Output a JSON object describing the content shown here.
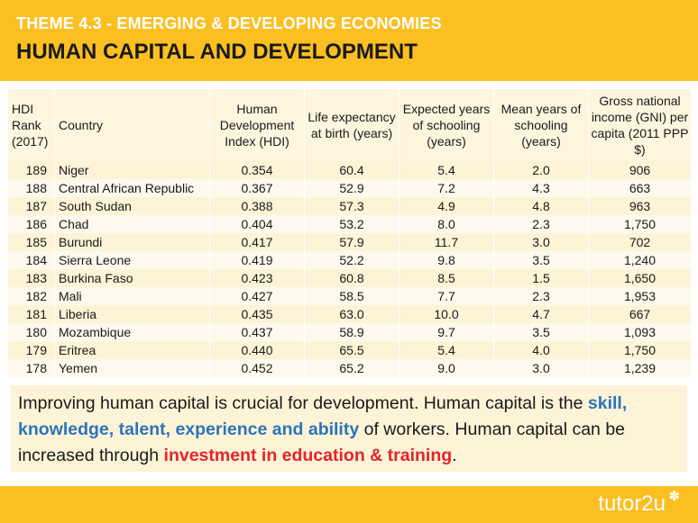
{
  "header": {
    "theme": "THEME 4.3 -  EMERGING & DEVELOPING ECONOMIES",
    "title": "HUMAN CAPITAL AND DEVELOPMENT"
  },
  "table": {
    "columns": [
      "HDI Rank (2017)",
      "Country",
      "Human Development Index (HDI)",
      "Life expectancy at birth (years)",
      "Expected years of schooling (years)",
      "Mean years of schooling (years)",
      "Gross national income (GNI) per capita (2011 PPP $)"
    ],
    "rows": [
      [
        "189",
        "Niger",
        "0.354",
        "60.4",
        "5.4",
        "2.0",
        "906"
      ],
      [
        "188",
        "Central African Republic",
        "0.367",
        "52.9",
        "7.2",
        "4.3",
        "663"
      ],
      [
        "187",
        "South Sudan",
        "0.388",
        "57.3",
        "4.9",
        "4.8",
        "963"
      ],
      [
        "186",
        "Chad",
        "0.404",
        "53.2",
        "8.0",
        "2.3",
        "1,750"
      ],
      [
        "185",
        "Burundi",
        "0.417",
        "57.9",
        "11.7",
        "3.0",
        "702"
      ],
      [
        "184",
        "Sierra Leone",
        "0.419",
        "52.2",
        "9.8",
        "3.5",
        "1,240"
      ],
      [
        "183",
        "Burkina Faso",
        "0.423",
        "60.8",
        "8.5",
        "1.5",
        "1,650"
      ],
      [
        "182",
        "Mali",
        "0.427",
        "58.5",
        "7.7",
        "2.3",
        "1,953"
      ],
      [
        "181",
        "Liberia",
        "0.435",
        "63.0",
        "10.0",
        "4.7",
        "667"
      ],
      [
        "180",
        "Mozambique",
        "0.437",
        "58.9",
        "9.7",
        "3.5",
        "1,093"
      ],
      [
        "179",
        "Eritrea",
        "0.440",
        "65.5",
        "5.4",
        "4.0",
        "1,750"
      ],
      [
        "178",
        "Yemen",
        "0.452",
        "65.2",
        "9.0",
        "3.0",
        "1,239"
      ]
    ]
  },
  "callout": {
    "text1": "Improving human capital is crucial for development. Human capital is the ",
    "highlight1": "skill, knowledge, talent, experience and ability",
    "text2": " of workers. Human capital can be increased through ",
    "highlight2": "investment in education & training",
    "text3": "."
  },
  "footer": {
    "logo": "tutor2u",
    "logo_icon": "asterisk-icon"
  },
  "colors": {
    "brand": "#fbbf22",
    "blue": "#2a75bb",
    "red": "#e3242b",
    "row": "#fdf3d7"
  }
}
